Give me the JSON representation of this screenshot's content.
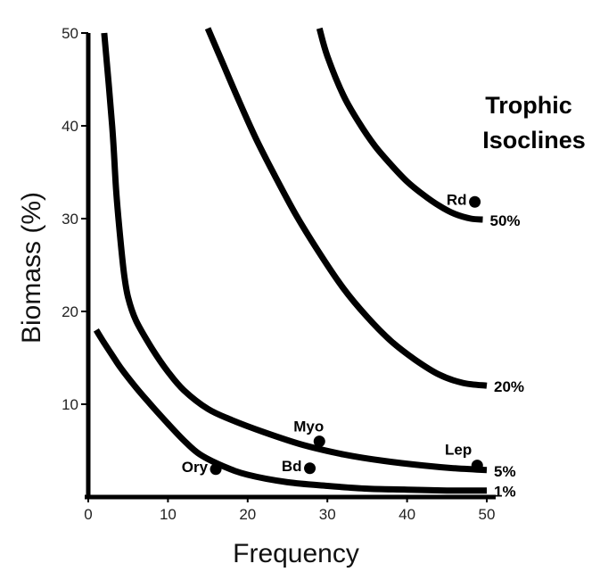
{
  "chart_data": {
    "type": "line",
    "title_lines": [
      "Trophic",
      "Isoclines"
    ],
    "xlabel": "Frequency",
    "ylabel": "Biomass (%)",
    "xlim": [
      0,
      50
    ],
    "ylim": [
      0,
      50
    ],
    "xticks": [
      0,
      10,
      20,
      30,
      40,
      50
    ],
    "yticks": [
      10,
      20,
      30,
      40,
      50
    ],
    "grid": false,
    "series": [
      {
        "name": "50%",
        "x": [
          29,
          30,
          32,
          34,
          36,
          38,
          40,
          42,
          44,
          46,
          48,
          49.5
        ],
        "y": [
          50.5,
          47.5,
          43.3,
          40.3,
          37.8,
          35.8,
          34.0,
          32.6,
          31.4,
          30.5,
          30.0,
          29.9
        ]
      },
      {
        "name": "20%",
        "x": [
          15,
          17,
          19,
          21,
          23,
          26,
          29,
          32,
          35,
          38,
          41,
          44,
          47,
          50
        ],
        "y": [
          50.5,
          46.5,
          42.5,
          38.7,
          35.3,
          30.5,
          26.3,
          22.5,
          19.4,
          16.8,
          14.8,
          13.2,
          12.3,
          12.0
        ]
      },
      {
        "name": "5%",
        "x": [
          2,
          3,
          3.5,
          4,
          4.5,
          5,
          6,
          8,
          10,
          12,
          15,
          18,
          22,
          27,
          32,
          37,
          42,
          46,
          50
        ],
        "y": [
          50,
          40,
          33,
          28,
          24,
          21.5,
          19,
          16,
          13.5,
          11.5,
          9.5,
          8.3,
          7.0,
          5.6,
          4.6,
          3.9,
          3.4,
          3.1,
          2.9
        ]
      },
      {
        "name": "1%",
        "x": [
          1,
          2,
          3,
          4,
          6,
          8,
          10,
          12,
          14,
          17,
          20,
          25,
          30,
          35,
          40,
          45,
          50
        ],
        "y": [
          18,
          16.6,
          15.3,
          14.0,
          11.8,
          9.8,
          7.9,
          6.1,
          4.6,
          3.3,
          2.4,
          1.6,
          1.2,
          0.9,
          0.8,
          0.7,
          0.7
        ]
      }
    ],
    "points": [
      {
        "label": "Rd",
        "x": 48.5,
        "y": 31.8,
        "label_side": "left"
      },
      {
        "label": "Myo",
        "x": 29,
        "y": 6.0,
        "label_side": "above"
      },
      {
        "label": "Lep",
        "x": 48.8,
        "y": 3.4,
        "label_side": "above-left"
      },
      {
        "label": "Ory",
        "x": 16,
        "y": 3.0,
        "label_side": "left"
      },
      {
        "label": "Bd",
        "x": 27.8,
        "y": 3.1,
        "label_side": "left"
      }
    ],
    "colors": {
      "line": "#000000",
      "text": "#000000",
      "background": "#ffffff"
    }
  }
}
